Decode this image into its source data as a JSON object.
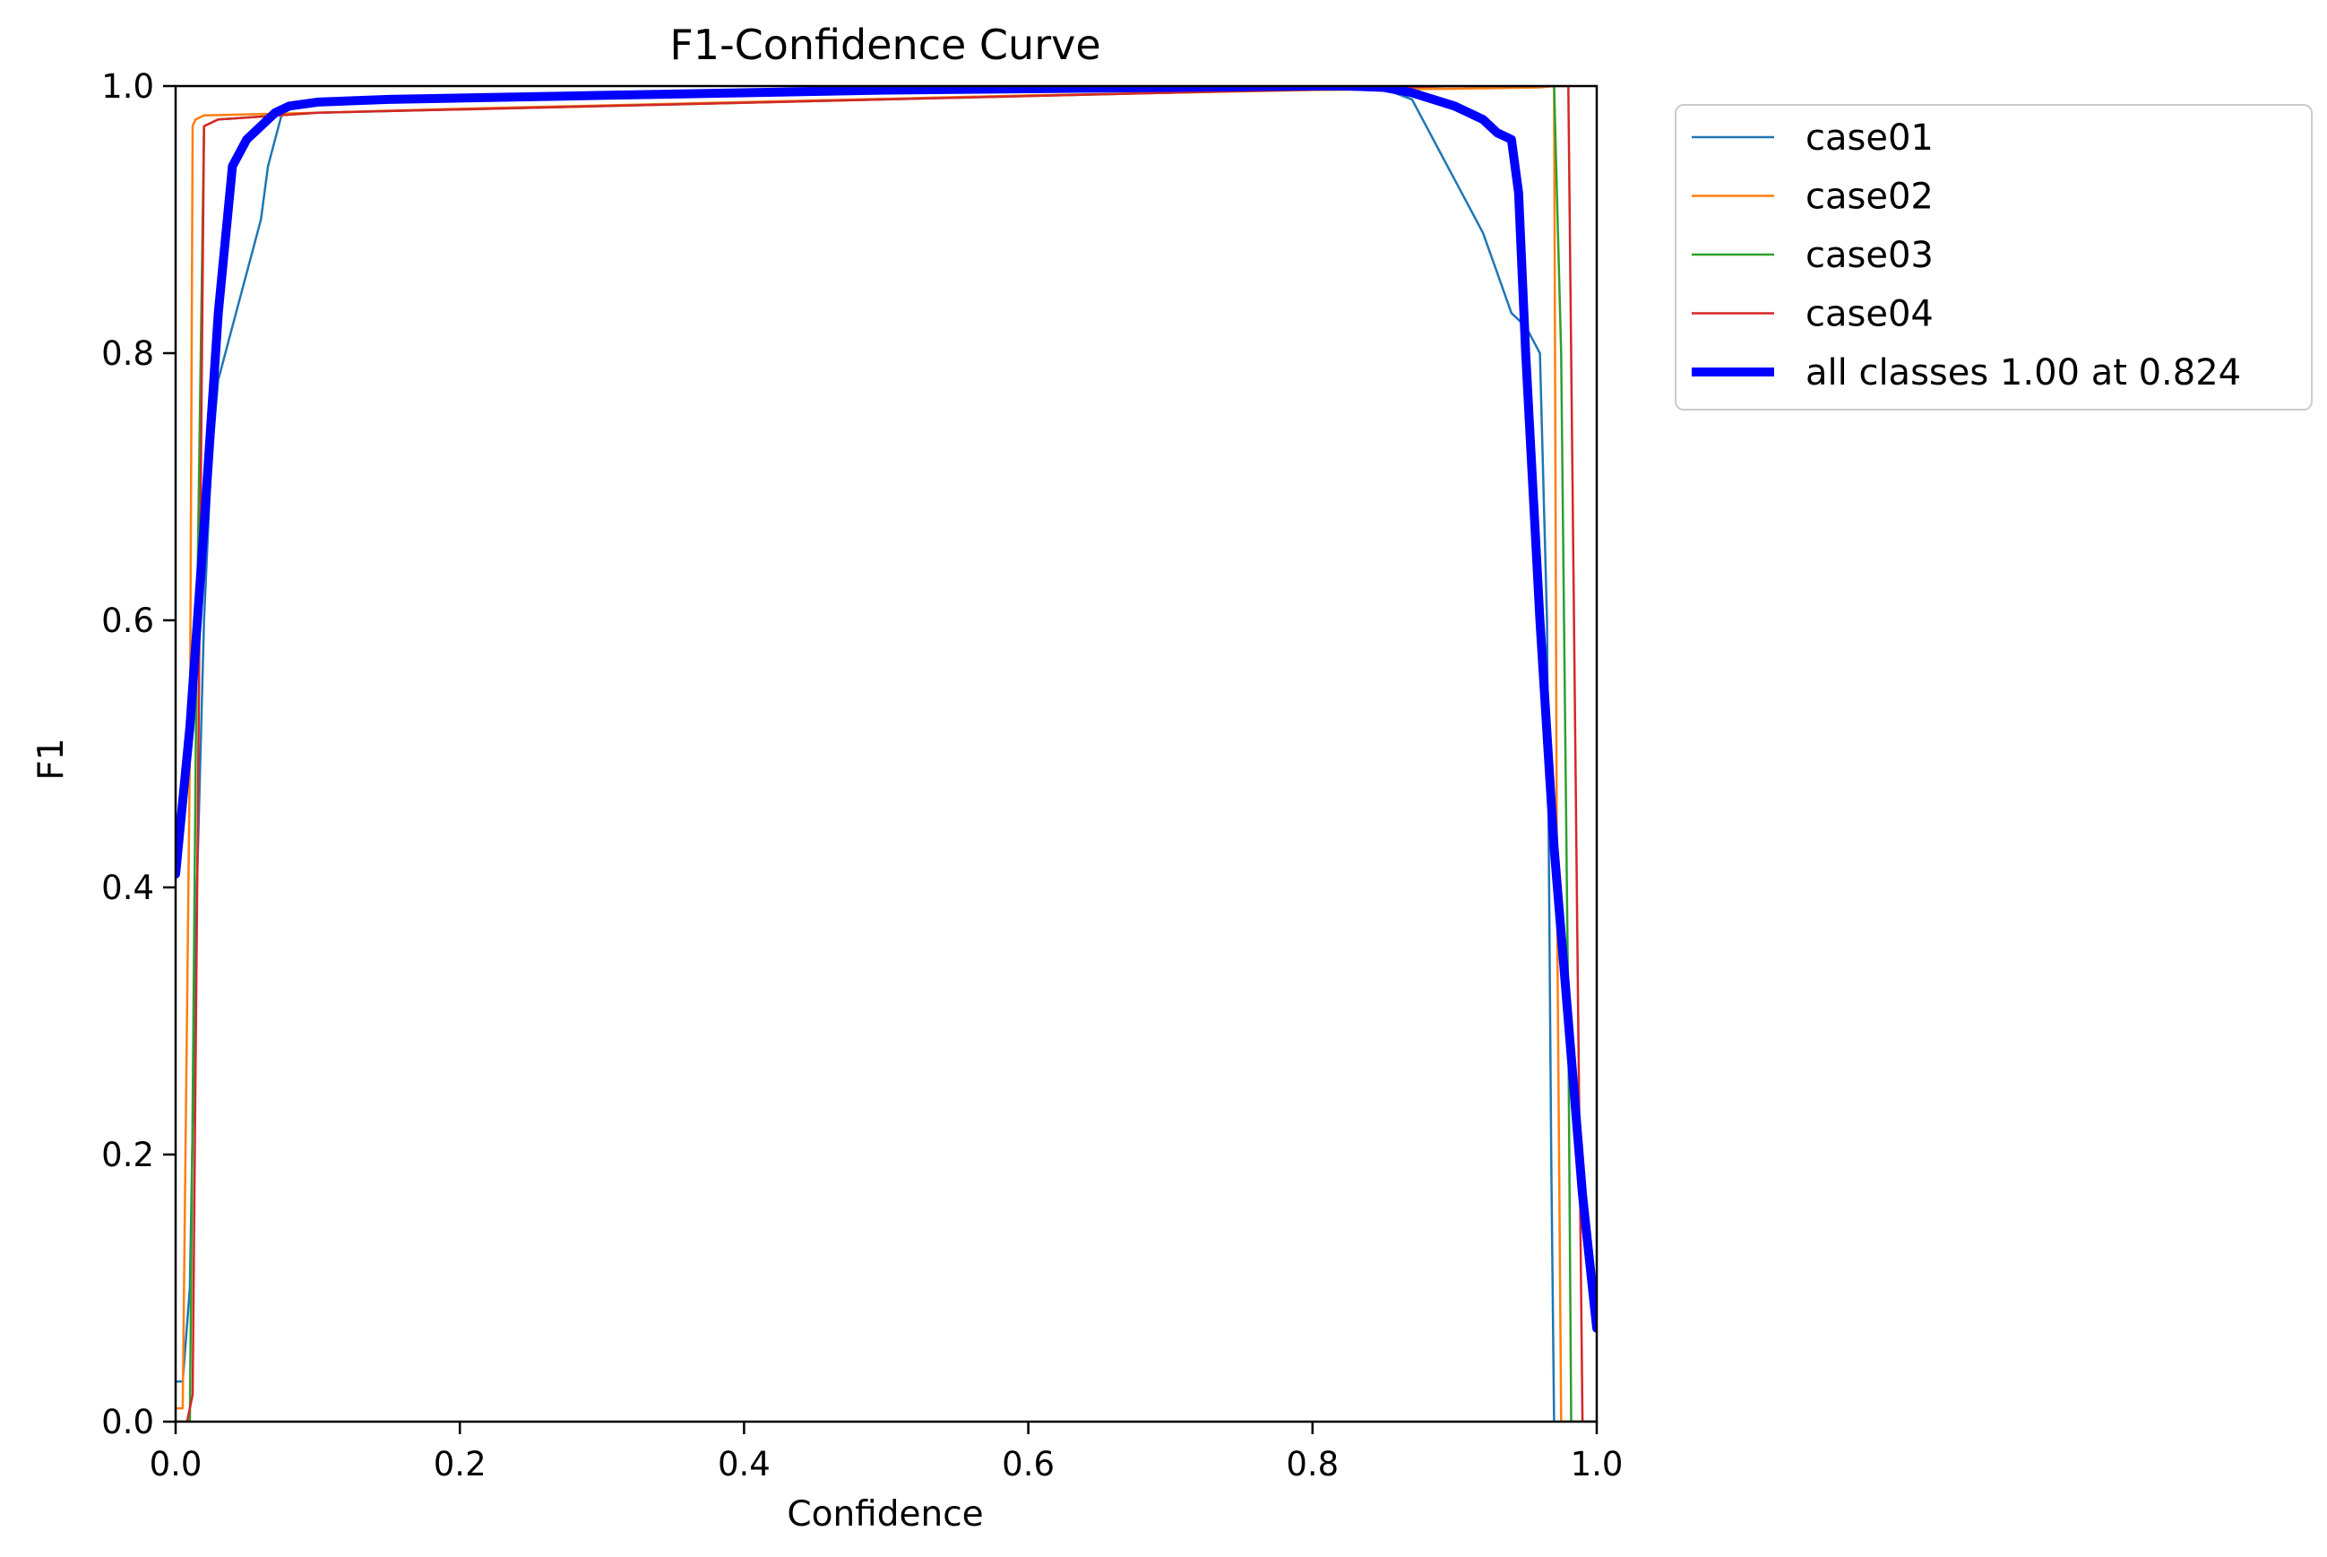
{
  "chart_data": {
    "type": "line",
    "title": "F1-Confidence Curve",
    "xlabel": "Confidence",
    "ylabel": "F1",
    "xlim": [
      0,
      1
    ],
    "ylim": [
      0,
      1
    ],
    "grid": false,
    "legend_position": "outside-top-right",
    "x_ticks": [
      "0.0",
      "0.2",
      "0.4",
      "0.6",
      "0.8",
      "1.0"
    ],
    "y_ticks": [
      "0.0",
      "0.2",
      "0.4",
      "0.6",
      "0.8",
      "1.0"
    ],
    "series": [
      {
        "name": "case01",
        "color": "#1f77b4",
        "width": "thin",
        "x": [
          0.0,
          0.005,
          0.01,
          0.015,
          0.02,
          0.025,
          0.03,
          0.035,
          0.04,
          0.05,
          0.06,
          0.065,
          0.07,
          0.075,
          0.08,
          0.1,
          0.2,
          0.3,
          0.4,
          0.5,
          0.6,
          0.7,
          0.8,
          0.85,
          0.87,
          0.88,
          0.89,
          0.9,
          0.91,
          0.92,
          0.93,
          0.94,
          0.95,
          0.96,
          0.965,
          0.968,
          0.97,
          0.975,
          1.0
        ],
        "y": [
          0.03,
          0.03,
          0.1,
          0.4,
          0.6,
          0.72,
          0.78,
          0.8,
          0.82,
          0.86,
          0.9,
          0.94,
          0.96,
          0.98,
          0.985,
          0.988,
          0.99,
          0.995,
          0.997,
          0.998,
          0.998,
          0.998,
          0.998,
          0.998,
          0.99,
          0.97,
          0.95,
          0.93,
          0.91,
          0.89,
          0.86,
          0.83,
          0.82,
          0.8,
          0.6,
          0.2,
          0.0,
          0.0,
          0.0
        ]
      },
      {
        "name": "case02",
        "color": "#ff7f0e",
        "width": "thin",
        "x": [
          0.0,
          0.005,
          0.01,
          0.012,
          0.014,
          0.02,
          0.1,
          0.2,
          0.4,
          0.6,
          0.8,
          0.9,
          0.96,
          0.97,
          0.972,
          0.975,
          1.0
        ],
        "y": [
          0.01,
          0.01,
          0.5,
          0.97,
          0.975,
          0.978,
          0.98,
          0.983,
          0.988,
          0.993,
          0.997,
          0.998,
          0.999,
          1.0,
          0.4,
          0.0,
          0.0
        ]
      },
      {
        "name": "case03",
        "color": "#2ca02c",
        "width": "thin",
        "x": [
          0.0,
          0.01,
          0.015,
          0.02,
          0.03,
          0.1,
          0.5,
          0.9,
          0.97,
          0.975,
          0.98,
          0.982,
          1.0
        ],
        "y": [
          0.0,
          0.0,
          0.6,
          0.97,
          0.975,
          0.98,
          0.99,
          1.0,
          1.0,
          0.8,
          0.3,
          0.0,
          0.0
        ]
      },
      {
        "name": "case04",
        "color": "#d62728",
        "width": "thin",
        "x": [
          0.0,
          0.008,
          0.012,
          0.016,
          0.02,
          0.03,
          0.1,
          0.5,
          0.9,
          0.98,
          0.985,
          0.99,
          1.0
        ],
        "y": [
          0.0,
          0.0,
          0.02,
          0.5,
          0.97,
          0.975,
          0.98,
          0.99,
          1.0,
          1.0,
          0.5,
          0.0,
          0.0
        ]
      },
      {
        "name": "all classes 1.00 at 0.824",
        "color": "#0000ff",
        "width": "thick",
        "x": [
          0.0,
          0.01,
          0.02,
          0.03,
          0.04,
          0.05,
          0.06,
          0.07,
          0.08,
          0.1,
          0.15,
          0.2,
          0.3,
          0.4,
          0.5,
          0.6,
          0.7,
          0.8,
          0.824,
          0.85,
          0.87,
          0.9,
          0.92,
          0.93,
          0.94,
          0.945,
          0.95,
          0.96,
          0.97,
          0.98,
          0.99,
          1.0
        ],
        "y": [
          0.41,
          0.52,
          0.67,
          0.83,
          0.94,
          0.96,
          0.97,
          0.98,
          0.985,
          0.988,
          0.99,
          0.991,
          0.993,
          0.995,
          0.997,
          0.998,
          0.999,
          1.0,
          1.0,
          0.999,
          0.995,
          0.985,
          0.975,
          0.965,
          0.96,
          0.92,
          0.8,
          0.6,
          0.43,
          0.3,
          0.17,
          0.07
        ]
      }
    ]
  }
}
